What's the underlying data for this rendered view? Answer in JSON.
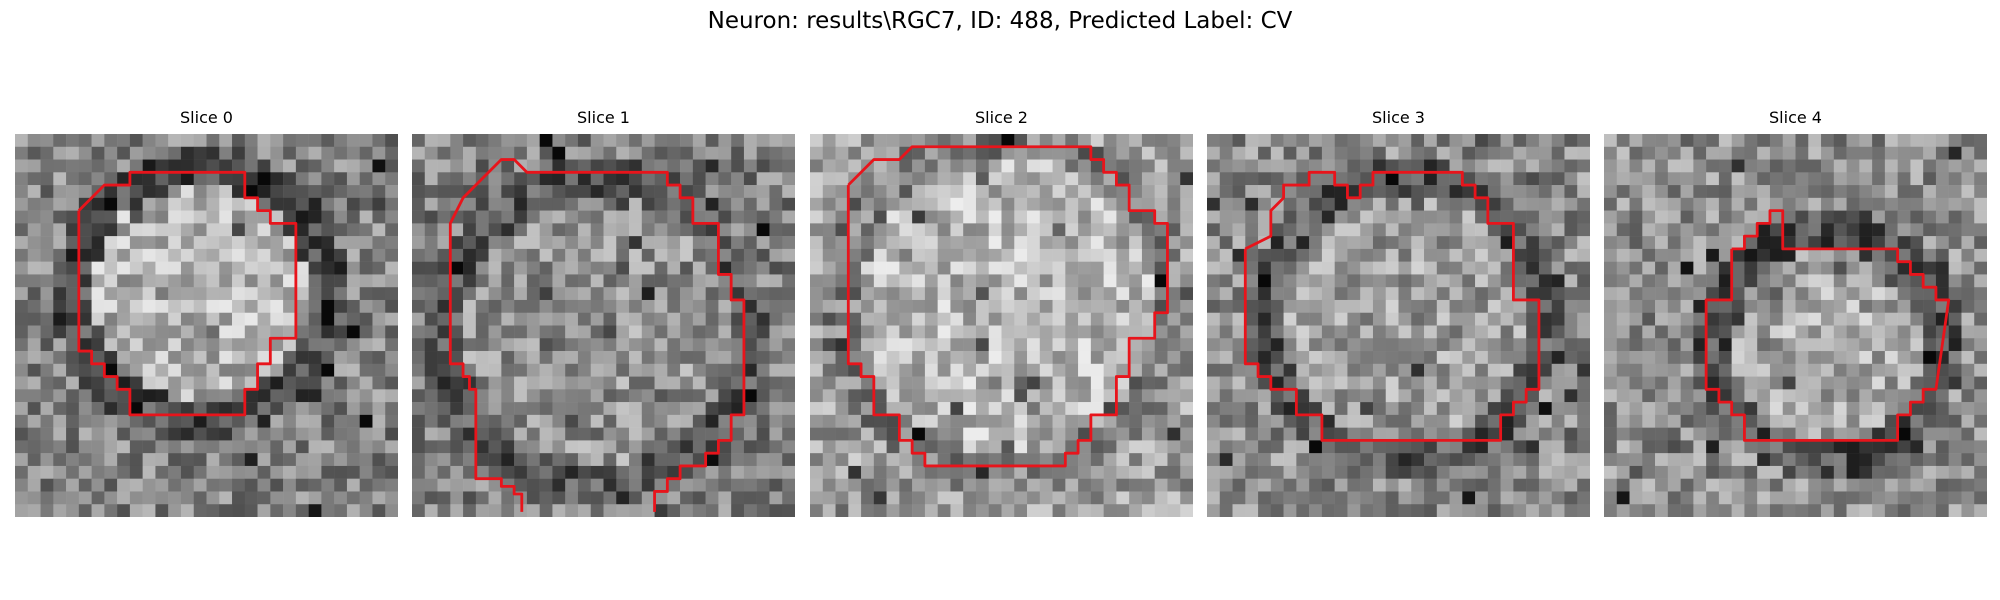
{
  "figure": {
    "title": "Neuron: results\\RGC7, ID: 488, Predicted Label: CV"
  },
  "colors": {
    "contour": "#e8141b",
    "background": "#ffffff"
  },
  "panels": [
    {
      "title": "Slice 0"
    },
    {
      "title": "Slice 1"
    },
    {
      "title": "Slice 2"
    },
    {
      "title": "Slice 3"
    },
    {
      "title": "Slice 4"
    }
  ]
}
